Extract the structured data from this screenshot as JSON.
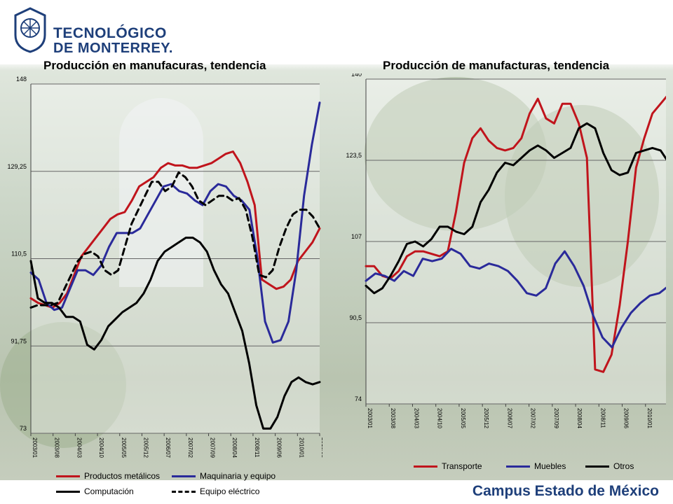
{
  "logo": {
    "line1": "TECNOLÓGICO",
    "line2": "DE MONTERREY."
  },
  "campus": "Campus Estado de México",
  "colors": {
    "red": "#c0141c",
    "blue": "#2a2a9a",
    "black": "#000000"
  },
  "chart_data": [
    {
      "type": "line",
      "title": "Producción en manufacuras, tendencia",
      "ylim": [
        73,
        148
      ],
      "yticks": [
        "148",
        "129,25",
        "110,5",
        "91,75",
        "73"
      ],
      "xticks": [
        "2003/01",
        "2003/08",
        "2004/03",
        "2004/10",
        "2005/05",
        "2005/12",
        "2006/07",
        "2007/02",
        "2007/09",
        "2008/04",
        "2008/11",
        "2009/06",
        "2010/01",
        "2010/08"
      ],
      "x_start": "2003/01",
      "x_end": "2010/09",
      "series": [
        {
          "name": "Productos metálicos",
          "color": "#c0141c",
          "dash": false,
          "values": [
            102,
            101,
            100.5,
            100,
            101,
            103,
            107,
            111,
            113,
            115,
            117,
            119,
            120,
            120.5,
            123,
            126,
            127,
            128,
            130,
            131,
            130.5,
            130.5,
            130,
            130,
            130.5,
            131,
            132,
            133,
            133.5,
            131,
            127,
            122,
            106,
            105,
            104,
            104.5,
            106,
            110,
            112,
            114,
            117
          ]
        },
        {
          "name": "Maquinaria y equipo",
          "color": "#2a2a9a",
          "dash": false,
          "values": [
            107.5,
            106,
            101,
            99.5,
            100,
            104,
            108,
            108,
            107,
            109,
            113,
            116,
            116,
            116,
            117,
            120,
            123,
            126,
            126.5,
            125,
            124.5,
            123,
            122,
            125,
            126.5,
            126,
            124,
            123,
            121,
            111,
            97,
            92.5,
            93,
            97,
            108,
            124,
            135,
            144
          ]
        },
        {
          "name": "Computación",
          "color": "#000000",
          "dash": false,
          "values": [
            110,
            102,
            101,
            101,
            100,
            98,
            98,
            97,
            92,
            91,
            93,
            96,
            97.5,
            99,
            100,
            101,
            103,
            106,
            110,
            112,
            113,
            114,
            115,
            115,
            114,
            112,
            108,
            105,
            103,
            99,
            95,
            88,
            79,
            74,
            74,
            76.5,
            81,
            84,
            85,
            84,
            83.5,
            84
          ]
        },
        {
          "name": "Equipo eléctrico",
          "color": "#000000",
          "dash": true,
          "values": [
            100,
            100.5,
            100.5,
            100.5,
            101,
            104,
            107,
            110,
            111.5,
            112,
            111,
            108,
            107,
            108,
            113,
            118,
            121,
            124,
            127,
            127,
            125,
            126,
            129,
            128,
            126,
            123,
            122,
            123,
            124,
            124,
            123,
            123.5,
            121,
            115,
            107,
            106.5,
            108,
            113,
            117,
            120,
            121,
            121,
            119.5,
            117
          ]
        }
      ]
    },
    {
      "type": "line",
      "title": "Producción de manufacturas, tendencia",
      "ylim": [
        74,
        140
      ],
      "yticks": [
        "140",
        "123,5",
        "107",
        "90,5",
        "74"
      ],
      "xticks": [
        "2003/01",
        "2003/08",
        "2004/03",
        "2004/10",
        "2005/05",
        "2005/12",
        "2006/07",
        "2007/02",
        "2007/09",
        "2008/04",
        "2008/11",
        "2009/06",
        "2010/01",
        "2010/08"
      ],
      "x_start": "2003/01",
      "x_end": "2010/09",
      "series": [
        {
          "name": "Transporte",
          "color": "#c0141c",
          "dash": false,
          "values": [
            102,
            102,
            100,
            99.5,
            101,
            104,
            105,
            105,
            104.5,
            104,
            105,
            113,
            123,
            128,
            130,
            127.5,
            126,
            125.5,
            126,
            128,
            133,
            136,
            132,
            131,
            135,
            135,
            131,
            124,
            81,
            80.5,
            84,
            94,
            107,
            122,
            128,
            133,
            135,
            137
          ]
        },
        {
          "name": "Muebles",
          "color": "#2a2a9a",
          "dash": false,
          "values": [
            99,
            100.5,
            100,
            99,
            101,
            100,
            103.5,
            103,
            103.5,
            105.5,
            104.5,
            102,
            101.5,
            102.5,
            102,
            101,
            99,
            96.5,
            96,
            97.5,
            102.5,
            105,
            102,
            98,
            92,
            87.5,
            85.5,
            89.5,
            92.5,
            94.5,
            96,
            96.5,
            98
          ]
        },
        {
          "name": "Otros",
          "color": "#000000",
          "dash": false,
          "values": [
            98,
            96.5,
            97.5,
            100,
            103,
            106.5,
            107,
            106,
            107.5,
            110,
            110,
            109,
            108.5,
            110,
            115,
            117.5,
            121,
            123,
            122.5,
            124,
            125.5,
            126.5,
            125.5,
            124,
            125,
            126,
            130,
            131,
            130,
            125,
            121.5,
            120.5,
            121,
            125,
            125.5,
            126,
            125.5,
            123
          ]
        }
      ]
    }
  ]
}
